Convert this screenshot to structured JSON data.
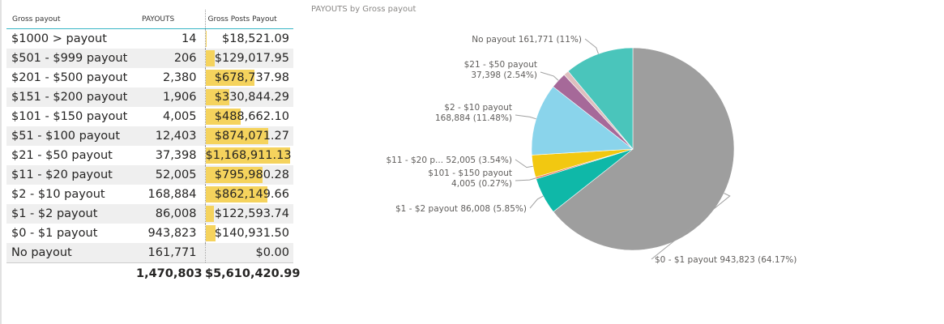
{
  "table": {
    "headers": [
      "Gross payout",
      "PAYOUTS",
      "Gross Posts Payout"
    ],
    "rows": [
      {
        "label": "$1000 > payout",
        "payouts": "14",
        "gross": "$18,521.09",
        "gross_value": 18521.09
      },
      {
        "label": "$501  - $999 payout",
        "payouts": "206",
        "gross": "$129,017.95",
        "gross_value": 129017.95
      },
      {
        "label": "$201  - $500 payout",
        "payouts": "2,380",
        "gross": "$678,737.98",
        "gross_value": 678737.98
      },
      {
        "label": "$151  - $200 payout",
        "payouts": "1,906",
        "gross": "$330,844.29",
        "gross_value": 330844.29
      },
      {
        "label": "$101 - $150 payout",
        "payouts": "4,005",
        "gross": "$488,662.10",
        "gross_value": 488662.1
      },
      {
        "label": "$51 - $100 payout",
        "payouts": "12,403",
        "gross": "$874,071.27",
        "gross_value": 874071.27
      },
      {
        "label": "$21 - $50 payout",
        "payouts": "37,398",
        "gross": "$1,168,911.13",
        "gross_value": 1168911.13
      },
      {
        "label": "$11 - $20 payout",
        "payouts": "52,005",
        "gross": "$795,980.28",
        "gross_value": 795980.28
      },
      {
        "label": "$2 - $10 payout",
        "payouts": "168,884",
        "gross": "$862,149.66",
        "gross_value": 862149.66
      },
      {
        "label": "$1 - $2 payout",
        "payouts": "86,008",
        "gross": "$122,593.74",
        "gross_value": 122593.74
      },
      {
        "label": "$0 - $1 payout",
        "payouts": "943,823",
        "gross": "$140,931.50",
        "gross_value": 140931.5
      },
      {
        "label": "No payout",
        "payouts": "161,771",
        "gross": "$0.00",
        "gross_value": 0
      }
    ],
    "totals": {
      "payouts": "1,470,803",
      "gross": "$5,610,420.99"
    }
  },
  "chart_data": {
    "type": "pie",
    "title": "PAYOUTS by Gross payout",
    "start_category": "$0 - $1 payout",
    "slices": [
      {
        "category": "$0 - $1 payout",
        "value": 943823,
        "color": "#9e9e9e",
        "label": "$0 - $1 payout 943,823 (64.17%)"
      },
      {
        "category": "$1 - $2 payout",
        "value": 86008,
        "color": "#0fb8a8",
        "label": "$1 - $2 payout 86,008 (5.85%)"
      },
      {
        "category": "$101 - $150 payout",
        "value": 4005,
        "color": "#e8704f",
        "label": "$101 - $150 payout 4,005 (0.27%)"
      },
      {
        "category": "$11 - $20 payout",
        "value": 52005,
        "color": "#f2c811",
        "label": "$11 - $20 p... 52,005 (3.54%)"
      },
      {
        "category": "$2 - $10 payout",
        "value": 168884,
        "color": "#8ad4eb",
        "label": "$2 - $10 payout 168,884 (11.48%)"
      },
      {
        "category": "$21 - $50 payout",
        "value": 37398,
        "color": "#a66999",
        "label": "$21 - $50 payout 37,398 (2.54%)"
      },
      {
        "category": "$51 - $100 payout",
        "value": 12403,
        "color": "#dfbfbf",
        "label": ""
      },
      {
        "category": "No payout",
        "value": 161771,
        "color": "#4ac5bb",
        "label": "No payout 161,771 (11%)"
      }
    ]
  }
}
